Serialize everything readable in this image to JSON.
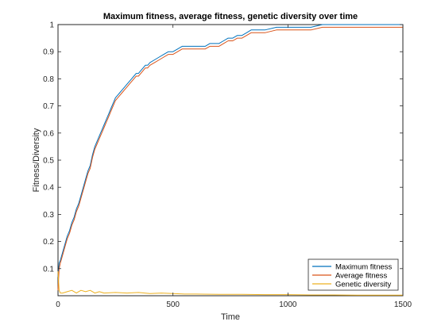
{
  "chart_data": {
    "type": "line",
    "title": "Maximum fitness, average fitness, genetic diversity over time",
    "xlabel": "Time",
    "ylabel": "Fitness/Diversity",
    "xlim": [
      0,
      1500
    ],
    "ylim": [
      0,
      1
    ],
    "xticks": [
      "0",
      "500",
      "1000",
      "1500"
    ],
    "xtick_values": [
      0,
      500,
      1000,
      1500
    ],
    "yticks": [
      "0.1",
      "0.2",
      "0.3",
      "0.4",
      "0.5",
      "0.6",
      "0.7",
      "0.8",
      "0.9",
      "1"
    ],
    "ytick_values": [
      0.1,
      0.2,
      0.3,
      0.4,
      0.5,
      0.6,
      0.7,
      0.8,
      0.9,
      1.0
    ],
    "grid": false,
    "legend_position": "bottom-right",
    "series": [
      {
        "name": "Maximum fitness",
        "color": "#0072BD",
        "x": [
          0,
          5,
          10,
          20,
          30,
          40,
          50,
          60,
          70,
          80,
          90,
          100,
          110,
          120,
          130,
          140,
          150,
          160,
          170,
          180,
          190,
          200,
          210,
          220,
          230,
          240,
          250,
          260,
          270,
          280,
          290,
          300,
          310,
          320,
          330,
          340,
          350,
          360,
          370,
          380,
          390,
          400,
          420,
          440,
          460,
          480,
          500,
          520,
          540,
          560,
          580,
          600,
          620,
          640,
          660,
          680,
          700,
          720,
          740,
          760,
          780,
          800,
          820,
          840,
          860,
          880,
          900,
          950,
          1000,
          1050,
          1100,
          1150,
          1200,
          1300,
          1400,
          1500
        ],
        "y": [
          0.07,
          0.12,
          0.13,
          0.16,
          0.19,
          0.22,
          0.24,
          0.27,
          0.29,
          0.32,
          0.34,
          0.37,
          0.4,
          0.43,
          0.46,
          0.48,
          0.52,
          0.55,
          0.57,
          0.59,
          0.61,
          0.63,
          0.65,
          0.67,
          0.69,
          0.71,
          0.73,
          0.74,
          0.75,
          0.76,
          0.77,
          0.78,
          0.79,
          0.8,
          0.81,
          0.82,
          0.82,
          0.83,
          0.84,
          0.85,
          0.85,
          0.86,
          0.87,
          0.88,
          0.89,
          0.9,
          0.9,
          0.91,
          0.92,
          0.92,
          0.92,
          0.92,
          0.92,
          0.92,
          0.93,
          0.93,
          0.93,
          0.94,
          0.95,
          0.95,
          0.96,
          0.96,
          0.97,
          0.98,
          0.98,
          0.98,
          0.98,
          0.99,
          0.99,
          0.99,
          0.99,
          1.0,
          1.0,
          1.0,
          1.0,
          1.0
        ]
      },
      {
        "name": "Average fitness",
        "color": "#D95319",
        "x": [
          0,
          5,
          10,
          20,
          30,
          40,
          50,
          60,
          70,
          80,
          90,
          100,
          110,
          120,
          130,
          140,
          150,
          160,
          170,
          180,
          190,
          200,
          210,
          220,
          230,
          240,
          250,
          260,
          270,
          280,
          290,
          300,
          310,
          320,
          330,
          340,
          350,
          360,
          370,
          380,
          390,
          400,
          420,
          440,
          460,
          480,
          500,
          520,
          540,
          560,
          580,
          600,
          620,
          640,
          660,
          680,
          700,
          720,
          740,
          760,
          780,
          800,
          820,
          840,
          860,
          880,
          900,
          950,
          1000,
          1050,
          1100,
          1150,
          1200,
          1300,
          1400,
          1500
        ],
        "y": [
          0.02,
          0.1,
          0.12,
          0.15,
          0.18,
          0.21,
          0.23,
          0.26,
          0.28,
          0.31,
          0.33,
          0.36,
          0.39,
          0.42,
          0.45,
          0.47,
          0.51,
          0.54,
          0.56,
          0.58,
          0.6,
          0.62,
          0.64,
          0.66,
          0.68,
          0.7,
          0.72,
          0.73,
          0.74,
          0.75,
          0.76,
          0.77,
          0.78,
          0.79,
          0.8,
          0.81,
          0.81,
          0.82,
          0.83,
          0.84,
          0.84,
          0.85,
          0.86,
          0.87,
          0.88,
          0.89,
          0.89,
          0.9,
          0.91,
          0.91,
          0.91,
          0.91,
          0.91,
          0.91,
          0.92,
          0.92,
          0.92,
          0.93,
          0.94,
          0.94,
          0.95,
          0.95,
          0.96,
          0.97,
          0.97,
          0.97,
          0.97,
          0.98,
          0.98,
          0.98,
          0.98,
          0.99,
          0.99,
          0.99,
          0.99,
          0.99
        ]
      },
      {
        "name": "Genetic diversity",
        "color": "#EDB120",
        "x": [
          0,
          5,
          10,
          20,
          40,
          60,
          80,
          100,
          120,
          140,
          160,
          180,
          200,
          250,
          300,
          350,
          400,
          450,
          500,
          550,
          600,
          700,
          800,
          900,
          1000,
          1100,
          1200,
          1300,
          1400,
          1500
        ],
        "y": [
          0.09,
          0.02,
          0.01,
          0.01,
          0.015,
          0.02,
          0.01,
          0.02,
          0.015,
          0.02,
          0.01,
          0.015,
          0.01,
          0.012,
          0.01,
          0.012,
          0.008,
          0.01,
          0.008,
          0.006,
          0.006,
          0.005,
          0.005,
          0.004,
          0.004,
          0.003,
          0.003,
          0.002,
          0.002,
          0.002
        ]
      }
    ]
  }
}
